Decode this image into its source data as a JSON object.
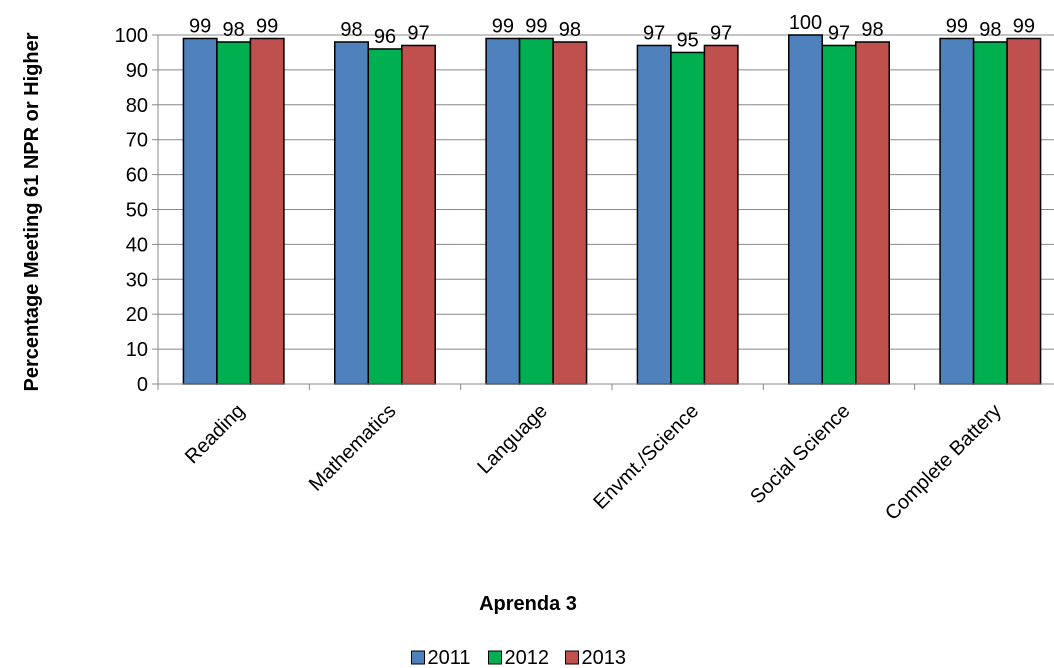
{
  "chart_data": {
    "type": "bar",
    "title": "",
    "xlabel": "Aprenda 3",
    "ylabel": "Percentage Meeting 61 NPR or Higher",
    "categories": [
      "Reading",
      "Mathematics",
      "Language",
      "Envmt./Science",
      "Social Science",
      "Complete Battery"
    ],
    "series": [
      {
        "name": "2011",
        "color": "#4F81BD",
        "values": [
          99,
          98,
          99,
          97,
          100,
          99
        ]
      },
      {
        "name": "2012",
        "color": "#00B050",
        "values": [
          98,
          96,
          99,
          95,
          97,
          98
        ]
      },
      {
        "name": "2013",
        "color": "#C0504D",
        "values": [
          99,
          97,
          98,
          97,
          98,
          99
        ]
      }
    ],
    "ylim": [
      0,
      100
    ],
    "yticks": [
      0,
      10,
      20,
      30,
      40,
      50,
      60,
      70,
      80,
      90,
      100
    ],
    "grid": true,
    "data_labels": true,
    "legend_position": "bottom"
  }
}
